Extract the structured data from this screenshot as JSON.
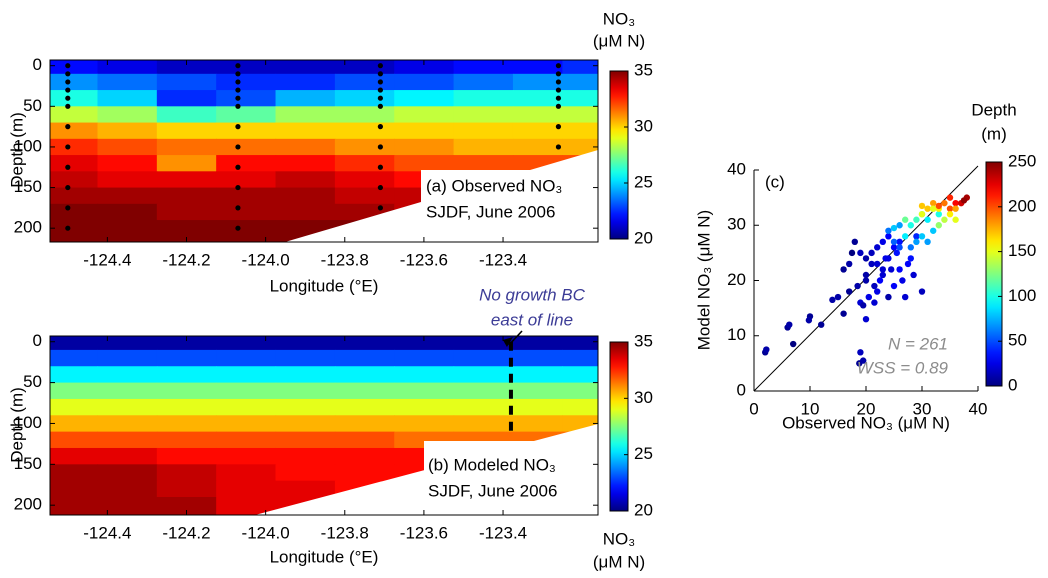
{
  "chart_data": [
    {
      "type": "contour",
      "annotation": [
        "(a) Observed NO₃",
        "SJDF, June 2006"
      ],
      "xlabel": "Longitude (°E)",
      "ylabel": "Depth (m)",
      "colorbar_label": [
        "NO₃",
        "(μM N)"
      ],
      "colormap": "jet",
      "x": [
        -124.5,
        -124.35,
        -124.2,
        -124.05,
        -123.9,
        -123.75,
        -123.6,
        -123.45,
        -123.3,
        -123.2
      ],
      "y": [
        0,
        20,
        40,
        60,
        80,
        100,
        120,
        140,
        160,
        180,
        200
      ],
      "z": [
        [
          22,
          21.5,
          21,
          21,
          21,
          21,
          21.5,
          22,
          22,
          22.5
        ],
        [
          24,
          23.5,
          23,
          22.5,
          22.5,
          23,
          23,
          23.5,
          24,
          24
        ],
        [
          26,
          25,
          22.5,
          23,
          24.5,
          25,
          25.5,
          26,
          26,
          26
        ],
        [
          28.5,
          28,
          26.5,
          27,
          28,
          28,
          28.5,
          28.5,
          28.5,
          28.5
        ],
        [
          31,
          30.5,
          30,
          30,
          30,
          30,
          30,
          30,
          30,
          30
        ],
        [
          32.5,
          32,
          31.5,
          31.5,
          31.5,
          31,
          31,
          30.5,
          30.5,
          30.5
        ],
        [
          33.5,
          33,
          31,
          33,
          33,
          32.5,
          32,
          32,
          32,
          32
        ],
        [
          34,
          33.5,
          33.5,
          33.5,
          34,
          33.5,
          33,
          33,
          33,
          33
        ],
        [
          34.5,
          34.5,
          34.5,
          34.5,
          34.5,
          34,
          34,
          34,
          34,
          34
        ],
        [
          35,
          35,
          34.5,
          34.5,
          34.5,
          34.5,
          34,
          34,
          34,
          34
        ],
        [
          35,
          35,
          35,
          35,
          35,
          35,
          35,
          35,
          35,
          35
        ]
      ],
      "points": {
        "x": [
          -124.5,
          -124.5,
          -124.5,
          -124.5,
          -124.5,
          -124.5,
          -124.5,
          -124.5,
          -124.5,
          -124.5,
          -124.5,
          -124.5,
          -124.07,
          -124.07,
          -124.07,
          -124.07,
          -124.07,
          -124.07,
          -124.07,
          -124.07,
          -124.07,
          -124.07,
          -124.07,
          -124.07,
          -123.71,
          -123.71,
          -123.71,
          -123.71,
          -123.71,
          -123.71,
          -123.71,
          -123.71,
          -123.71,
          -123.71,
          -123.71,
          -123.26,
          -123.26,
          -123.26,
          -123.26,
          -123.26,
          -123.26,
          -123.26,
          -123.26
        ],
        "y": [
          0,
          10,
          20,
          30,
          40,
          50,
          75,
          100,
          125,
          150,
          175,
          200,
          0,
          10,
          20,
          30,
          40,
          50,
          75,
          100,
          125,
          150,
          175,
          200,
          0,
          10,
          20,
          30,
          40,
          50,
          75,
          100,
          125,
          150,
          175,
          0,
          10,
          20,
          30,
          40,
          50,
          75,
          100
        ]
      },
      "xlim": [
        -124.545,
        -123.16
      ],
      "ylim": [
        217,
        -7
      ],
      "xticks": [
        -124.4,
        -124.2,
        {
          "value": -124,
          "label": "-124.0"
        },
        -123.8,
        -123.6,
        -123.4
      ],
      "yticks": [
        0,
        50,
        100,
        150,
        200
      ],
      "clim": [
        20,
        35
      ],
      "cticks": [
        20,
        25,
        30,
        35
      ]
    },
    {
      "type": "contour",
      "annotation": [
        "(b) Modeled NO₃",
        "SJDF, June 2006"
      ],
      "note": [
        "No growth BC",
        "east of line"
      ],
      "xlabel": "Longitude (°E)",
      "ylabel": "Depth (m)",
      "colorbar_label": [
        "NO₃",
        "(μM N)"
      ],
      "colormap": "jet",
      "x": [
        -124.5,
        -124.35,
        -124.2,
        -124.05,
        -123.9,
        -123.75,
        -123.6,
        -123.45,
        -123.3,
        -123.2
      ],
      "y": [
        0,
        20,
        40,
        60,
        80,
        100,
        120,
        140,
        160,
        180,
        200
      ],
      "z": [
        [
          20.5,
          20.5,
          20.5,
          20.5,
          20.5,
          20.5,
          20.5,
          20.5,
          20.5,
          20.5
        ],
        [
          23,
          23,
          23,
          23,
          23,
          23,
          23,
          23,
          23,
          23
        ],
        [
          25.5,
          25.5,
          25.5,
          25.5,
          25.5,
          25.5,
          25.5,
          25.5,
          25.5,
          25.5
        ],
        [
          27.5,
          27.5,
          27.5,
          27.5,
          27.5,
          27.5,
          27.5,
          27.5,
          27.5,
          27.5
        ],
        [
          29,
          29,
          29,
          29,
          29,
          29,
          29,
          29,
          29,
          29
        ],
        [
          30.5,
          30.5,
          30.5,
          30.5,
          30.5,
          30.5,
          30.5,
          30.5,
          30.5,
          30.5
        ],
        [
          32,
          32,
          32,
          32,
          32,
          32,
          31.5,
          31.5,
          31.5,
          31.5
        ],
        [
          33.5,
          33.5,
          33,
          33,
          33,
          33,
          33,
          33,
          33,
          33
        ],
        [
          34.5,
          34.5,
          34,
          33.5,
          33,
          33,
          33,
          33,
          33,
          33
        ],
        [
          34.5,
          34.5,
          34,
          33.5,
          33.5,
          33,
          33,
          33,
          33,
          33
        ],
        [
          34.5,
          34.5,
          34.5,
          33.5,
          33.5,
          33.5,
          33.5,
          33.5,
          33.5,
          33.5
        ]
      ],
      "boundary_lon": -123.38,
      "boundary_depths": [
        0,
        110
      ],
      "xlim": [
        -124.545,
        -123.16
      ],
      "ylim": [
        212,
        -7
      ],
      "xticks": [
        -124.4,
        -124.2,
        {
          "value": -124,
          "label": "-124.0"
        },
        -123.8,
        -123.6,
        -123.4
      ],
      "yticks": [
        0,
        50,
        100,
        150,
        200
      ],
      "clim": [
        20,
        35
      ],
      "cticks": [
        20,
        25,
        30,
        35
      ]
    },
    {
      "type": "scatter",
      "annotation": [
        "(c)"
      ],
      "stats": [
        "N = 261",
        "WSS = 0.89"
      ],
      "xlabel": "Observed NO₃ (μM N)",
      "ylabel": "Model NO₃ (μM N)",
      "colorbar_label": [
        "Depth",
        "(m)"
      ],
      "colormap": "jet",
      "x": [
        2,
        2.2,
        6,
        6.3,
        7,
        10,
        9.8,
        12,
        14,
        16,
        17,
        17.5,
        18,
        18.5,
        19,
        19.5,
        18.8,
        19.5,
        19,
        20,
        20.5,
        20,
        21,
        21.5,
        22,
        22.5,
        23,
        23.5,
        24,
        24.5,
        25,
        25.5,
        26,
        26.5,
        27,
        27.5,
        28,
        28.5,
        29,
        30,
        22,
        21,
        23,
        24,
        25,
        26,
        20,
        19,
        22,
        17,
        16,
        15,
        20,
        21.5,
        23,
        24,
        24,
        25,
        26,
        27,
        28,
        29,
        30,
        28,
        30,
        31,
        32,
        27,
        26,
        29,
        25,
        31,
        33,
        32,
        30,
        31,
        32,
        33,
        34,
        35,
        36,
        37,
        38,
        37.5,
        35,
        36,
        34,
        33,
        32,
        36,
        35,
        33,
        30
      ],
      "y": [
        7,
        7.5,
        11.5,
        12,
        8.5,
        13.5,
        12.8,
        12,
        16.5,
        22,
        23,
        25,
        27,
        19,
        16,
        15.5,
        5,
        5.5,
        7,
        13,
        17,
        21,
        23,
        16,
        18,
        20,
        21,
        24,
        17,
        22,
        19,
        25,
        22,
        20,
        17,
        23,
        24,
        21,
        28,
        18,
        26,
        25,
        27,
        28,
        26,
        27,
        24,
        25,
        23,
        18,
        14,
        17,
        20,
        19,
        22,
        24,
        29,
        29.5,
        30,
        28,
        30,
        31,
        32,
        26,
        28,
        31,
        29,
        31,
        26,
        27,
        27,
        27,
        32,
        33,
        32,
        33,
        34,
        33,
        34,
        33,
        34,
        34,
        35,
        34.5,
        32,
        33,
        31,
        30,
        33,
        31,
        35,
        33.5,
        33.5
      ],
      "c": [
        5,
        10,
        5,
        10,
        0,
        5,
        10,
        5,
        10,
        5,
        10,
        0,
        5,
        10,
        20,
        10,
        5,
        10,
        15,
        20,
        25,
        10,
        15,
        20,
        25,
        30,
        20,
        25,
        10,
        20,
        30,
        35,
        30,
        25,
        20,
        30,
        35,
        20,
        40,
        15,
        20,
        15,
        25,
        30,
        30,
        35,
        10,
        15,
        20,
        5,
        5,
        10,
        10,
        15,
        20,
        25,
        60,
        80,
        70,
        90,
        100,
        110,
        100,
        60,
        80,
        90,
        80,
        120,
        50,
        70,
        55,
        70,
        100,
        140,
        150,
        170,
        180,
        160,
        190,
        200,
        220,
        230,
        240,
        245,
        160,
        180,
        140,
        130,
        150,
        150,
        210,
        200,
        170
      ],
      "xlim": [
        0,
        40
      ],
      "ylim": [
        0,
        40
      ],
      "xticks": [
        0,
        10,
        20,
        30,
        40
      ],
      "yticks": [
        0,
        10,
        20,
        30,
        40
      ],
      "clim": [
        0,
        250
      ],
      "cticks": [
        0,
        50,
        100,
        150,
        200,
        250
      ]
    }
  ]
}
